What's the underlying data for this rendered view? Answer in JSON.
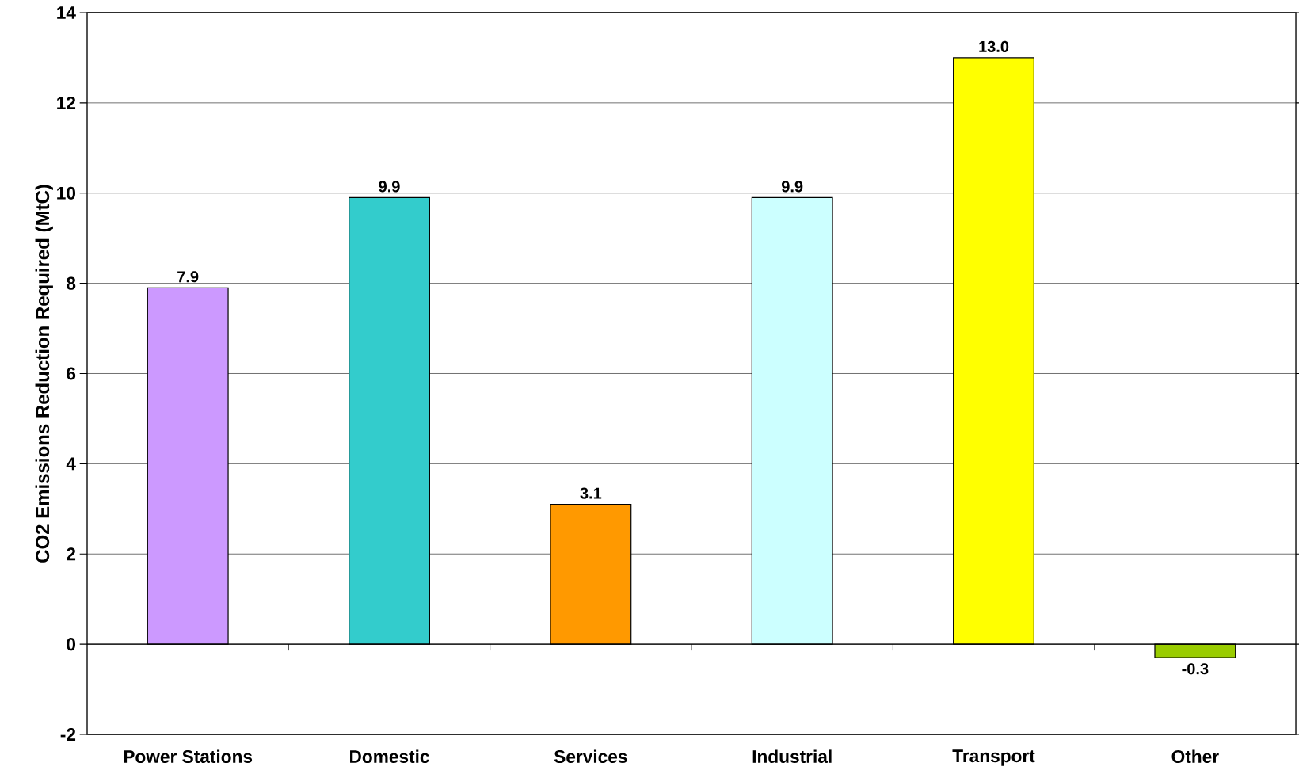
{
  "chart_data": {
    "type": "bar",
    "ylabel": "CO2 Emissions Reduction Required (MtC)",
    "categories": [
      "Power Stations",
      "Domestic",
      "Services",
      "Industrial",
      "Transport",
      "Other"
    ],
    "values": [
      7.9,
      9.9,
      3.1,
      9.9,
      13.0,
      -0.3
    ],
    "value_labels": [
      "7.9",
      "9.9",
      "3.1",
      "9.9",
      "13.0",
      "-0.3"
    ],
    "colors": [
      "#cc99ff",
      "#33cccc",
      "#ff9900",
      "#ccffff",
      "#ffff00",
      "#99cc00"
    ],
    "ylim": [
      -2,
      14
    ],
    "yticks": [
      -2,
      0,
      2,
      4,
      6,
      8,
      10,
      12,
      14
    ],
    "grid": "y"
  }
}
